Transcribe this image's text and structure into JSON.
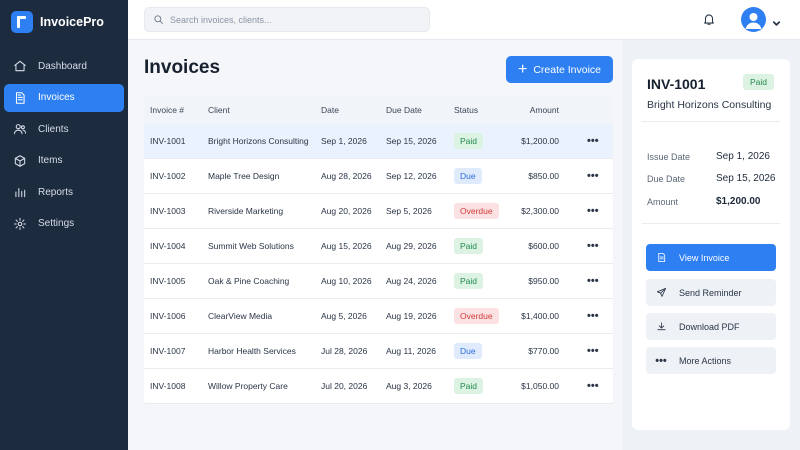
{
  "app": {
    "name": "InvoicePro"
  },
  "sidebar": {
    "items": [
      {
        "label": "Dashboard",
        "icon": "home-icon",
        "active": false
      },
      {
        "label": "Invoices",
        "icon": "document-icon",
        "active": true
      },
      {
        "label": "Clients",
        "icon": "users-icon",
        "active": false
      },
      {
        "label": "Items",
        "icon": "box-icon",
        "active": false
      },
      {
        "label": "Reports",
        "icon": "bar-chart-icon",
        "active": false
      },
      {
        "label": "Settings",
        "icon": "gear-icon",
        "active": false
      }
    ]
  },
  "topbar": {
    "search_placeholder": "Search invoices, clients...",
    "search_value": ""
  },
  "main": {
    "title": "Invoices",
    "create_label": "Create Invoice",
    "columns": [
      "Invoice #",
      "Client",
      "Date",
      "Due Date",
      "Status",
      "Amount"
    ],
    "rows": [
      {
        "id": "INV-1001",
        "client": "Bright Horizons Consulting",
        "date": "Sep 1, 2026",
        "due": "Sep 15, 2026",
        "status": "Paid",
        "amount": "$1,200.00",
        "selected": true
      },
      {
        "id": "INV-1002",
        "client": "Maple Tree Design",
        "date": "Aug 28, 2026",
        "due": "Sep 12, 2026",
        "status": "Due",
        "amount": "$850.00"
      },
      {
        "id": "INV-1003",
        "client": "Riverside Marketing",
        "date": "Aug 20, 2026",
        "due": "Sep 5, 2026",
        "status": "Overdue",
        "amount": "$2,300.00"
      },
      {
        "id": "INV-1004",
        "client": "Summit Web Solutions",
        "date": "Aug 15, 2026",
        "due": "Aug 29, 2026",
        "status": "Paid",
        "amount": "$600.00"
      },
      {
        "id": "INV-1005",
        "client": "Oak & Pine Coaching",
        "date": "Aug 10, 2026",
        "due": "Aug 24, 2026",
        "status": "Paid",
        "amount": "$950.00"
      },
      {
        "id": "INV-1006",
        "client": "ClearView Media",
        "date": "Aug 5, 2026",
        "due": "Aug 19, 2026",
        "status": "Overdue",
        "amount": "$1,400.00"
      },
      {
        "id": "INV-1007",
        "client": "Harbor Health Services",
        "date": "Jul 28, 2026",
        "due": "Aug 11, 2026",
        "status": "Due",
        "amount": "$770.00"
      },
      {
        "id": "INV-1008",
        "client": "Willow Property Care",
        "date": "Jul 20, 2026",
        "due": "Aug 3, 2026",
        "status": "Paid",
        "amount": "$1,050.00"
      }
    ]
  },
  "detail": {
    "id": "INV-1001",
    "status": "Paid",
    "client": "Bright Horizons Consulting",
    "fields": [
      {
        "label": "Issue Date",
        "value": "Sep 1, 2026"
      },
      {
        "label": "Due Date",
        "value": "Sep 15, 2026"
      },
      {
        "label": "Amount",
        "value": "$1,200.00"
      }
    ],
    "actions": [
      {
        "label": "View Invoice",
        "icon": "document-icon",
        "primary": true
      },
      {
        "label": "Send Reminder",
        "icon": "send-icon",
        "primary": false
      },
      {
        "label": "Download PDF",
        "icon": "download-icon",
        "primary": false
      },
      {
        "label": "More Actions",
        "icon": "more-icon",
        "primary": false
      }
    ]
  },
  "colors": {
    "sidebar_bg": "#1d2b3f",
    "accent": "#2d7ff2",
    "paid": "#23894d",
    "due": "#2d6fd6",
    "overdue": "#d23b3b"
  }
}
